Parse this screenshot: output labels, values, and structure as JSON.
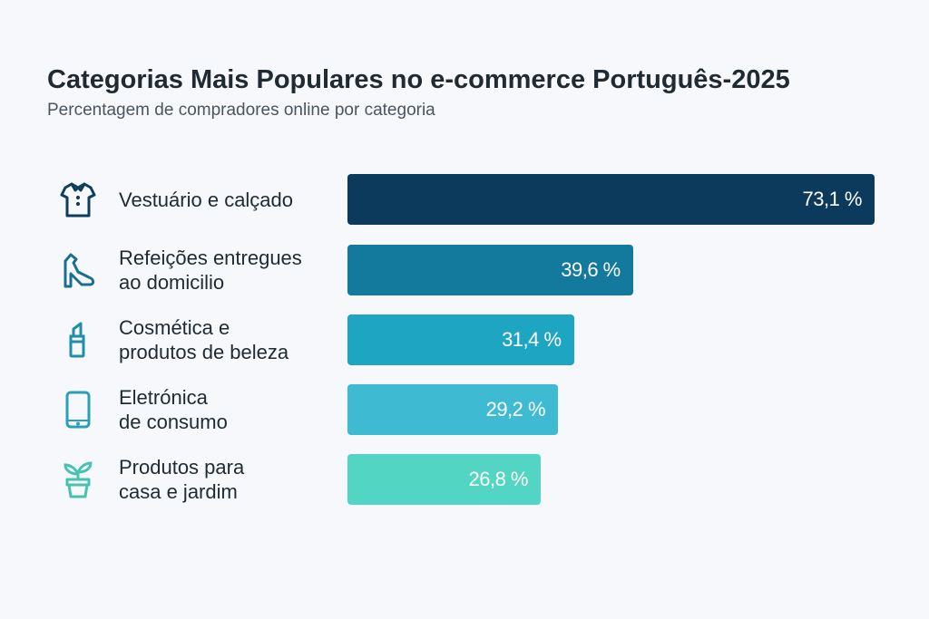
{
  "chart_data": {
    "type": "bar",
    "orientation": "horizontal",
    "title": "Categorias Mais Populares no e-commerce Português-2025",
    "subtitle": "Percentagem de compradores online por categoria",
    "categories": [
      "Vestuário e calçado",
      "Refeições entregues ao domicilio",
      "Cosmética e produtos de beleza",
      "Eletrónica de consumo",
      "Produtos para casa e jardim"
    ],
    "label_lines": [
      [
        "Vestuário e calçado"
      ],
      [
        "Refeições entregues",
        "ao domicilio"
      ],
      [
        "Cosmética e",
        "produtos de beleza"
      ],
      [
        "Eletrónica",
        "de consumo"
      ],
      [
        "Produtos para",
        "casa e jardim"
      ]
    ],
    "values": [
      73.1,
      39.6,
      31.4,
      29.2,
      26.8
    ],
    "data_labels": [
      "73,1 %",
      "39,6 %",
      "31,4 %",
      "29,2 %",
      "26,8 %"
    ],
    "icons": [
      "shirt-icon",
      "high-heel-icon",
      "lipstick-icon",
      "smartphone-icon",
      "plant-pot-icon"
    ],
    "colors": [
      "#0b3a5c",
      "#137a9d",
      "#1ea5c2",
      "#3ebad3",
      "#52d5c2"
    ],
    "icon_colors": [
      "#0f3d5e",
      "#1a6f8f",
      "#1f8eab",
      "#2a9fba",
      "#45c3b0"
    ],
    "xlim": [
      0,
      73.1
    ],
    "grid": false,
    "legend": "none"
  }
}
